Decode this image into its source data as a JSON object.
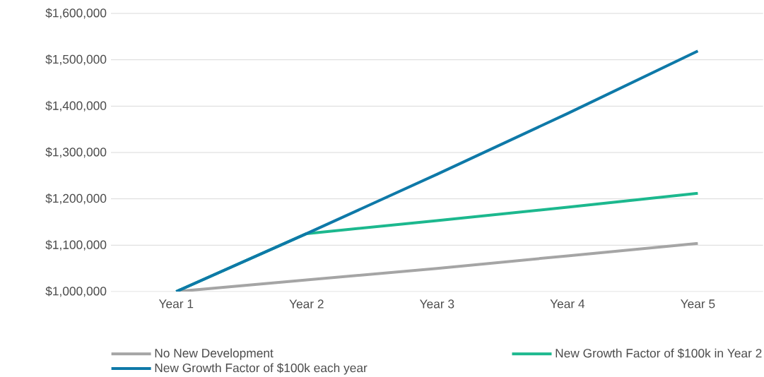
{
  "chart_data": {
    "type": "line",
    "categories": [
      "Year 1",
      "Year 2",
      "Year 3",
      "Year 4",
      "Year 5"
    ],
    "series": [
      {
        "name": "No New Development",
        "color": "#a5a5a5",
        "values": [
          1000000,
          1025000,
          1050000,
          1077000,
          1104000
        ]
      },
      {
        "name": "New Growth Factor of $100k in Year 2",
        "color": "#1cb88e",
        "values": [
          1000000,
          1125000,
          1153000,
          1182000,
          1212000
        ]
      },
      {
        "name": "New Growth Factor of $100k each year",
        "color": "#0e79a8",
        "values": [
          1000000,
          1125000,
          1253000,
          1384000,
          1519000
        ]
      }
    ],
    "ylim": [
      1000000,
      1600000
    ],
    "yticks": [
      {
        "value": 1000000,
        "label": "$1,000,000"
      },
      {
        "value": 1100000,
        "label": "$1,100,000"
      },
      {
        "value": 1200000,
        "label": "$1,200,000"
      },
      {
        "value": 1300000,
        "label": "$1,300,000"
      },
      {
        "value": 1400000,
        "label": "$1,400,000"
      },
      {
        "value": 1500000,
        "label": "$1,500,000"
      },
      {
        "value": 1600000,
        "label": "$1,600,000"
      }
    ],
    "grid": "y",
    "legend": "bottom",
    "marker": "none",
    "line_style": "solid"
  }
}
